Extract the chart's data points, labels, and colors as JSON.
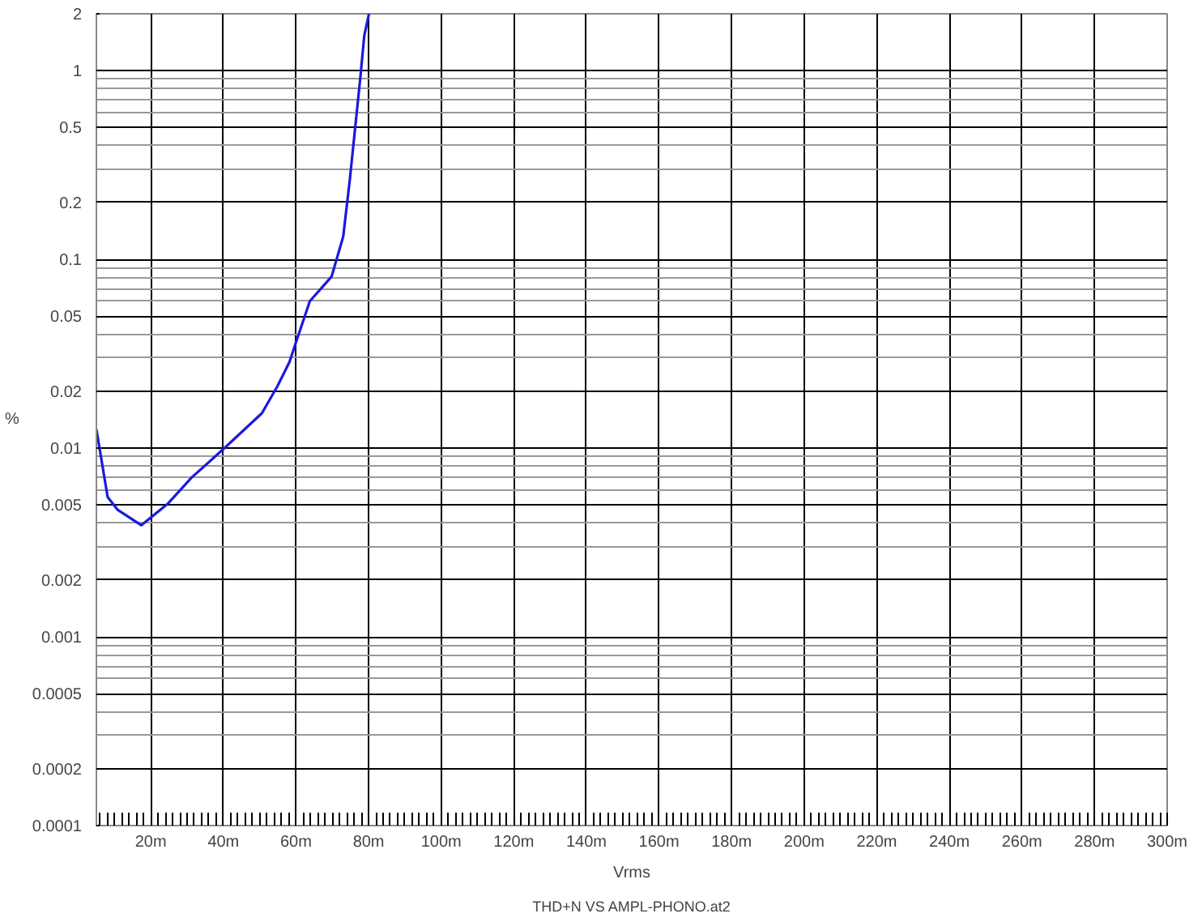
{
  "chart_data": {
    "type": "line",
    "xlabel": "Vrms",
    "ylabel": "%",
    "annotations": [
      "THD+N VS AMPL-PHONO.at2"
    ],
    "log": "y",
    "grid": true,
    "marker": "none",
    "line_style": "solid",
    "xlim": [
      5,
      300
    ],
    "ylim": [
      0.0001,
      2
    ],
    "xticks": [
      {
        "value": 20,
        "label": "20m"
      },
      {
        "value": 40,
        "label": "40m"
      },
      {
        "value": 60,
        "label": "60m"
      },
      {
        "value": 80,
        "label": "80m"
      },
      {
        "value": 100,
        "label": "100m"
      },
      {
        "value": 120,
        "label": "120m"
      },
      {
        "value": 140,
        "label": "140m"
      },
      {
        "value": 160,
        "label": "160m"
      },
      {
        "value": 180,
        "label": "180m"
      },
      {
        "value": 200,
        "label": "200m"
      },
      {
        "value": 220,
        "label": "220m"
      },
      {
        "value": 240,
        "label": "240m"
      },
      {
        "value": 260,
        "label": "260m"
      },
      {
        "value": 280,
        "label": "280m"
      },
      {
        "value": 300,
        "label": "300m"
      }
    ],
    "yticks": [
      2,
      1,
      0.5,
      0.2,
      0.1,
      0.05,
      0.02,
      0.01,
      0.005,
      0.002,
      0.001,
      0.0005,
      0.0002,
      0.0001
    ],
    "series": [
      {
        "color": "#1a1add",
        "x": [
          5,
          8.1,
          10.9,
          17.4,
          24.8,
          31.3,
          40.3,
          50.6,
          54.9,
          58.2,
          59.9,
          63.8,
          69.8,
          73,
          74.8,
          77.7,
          78.8,
          80.1
        ],
        "values": [
          0.0126,
          0.0055,
          0.0047,
          0.0039,
          0.0051,
          0.007,
          0.01,
          0.0153,
          0.0213,
          0.0286,
          0.0359,
          0.06,
          0.081,
          0.132,
          0.262,
          0.91,
          1.53,
          2.0
        ]
      }
    ]
  }
}
